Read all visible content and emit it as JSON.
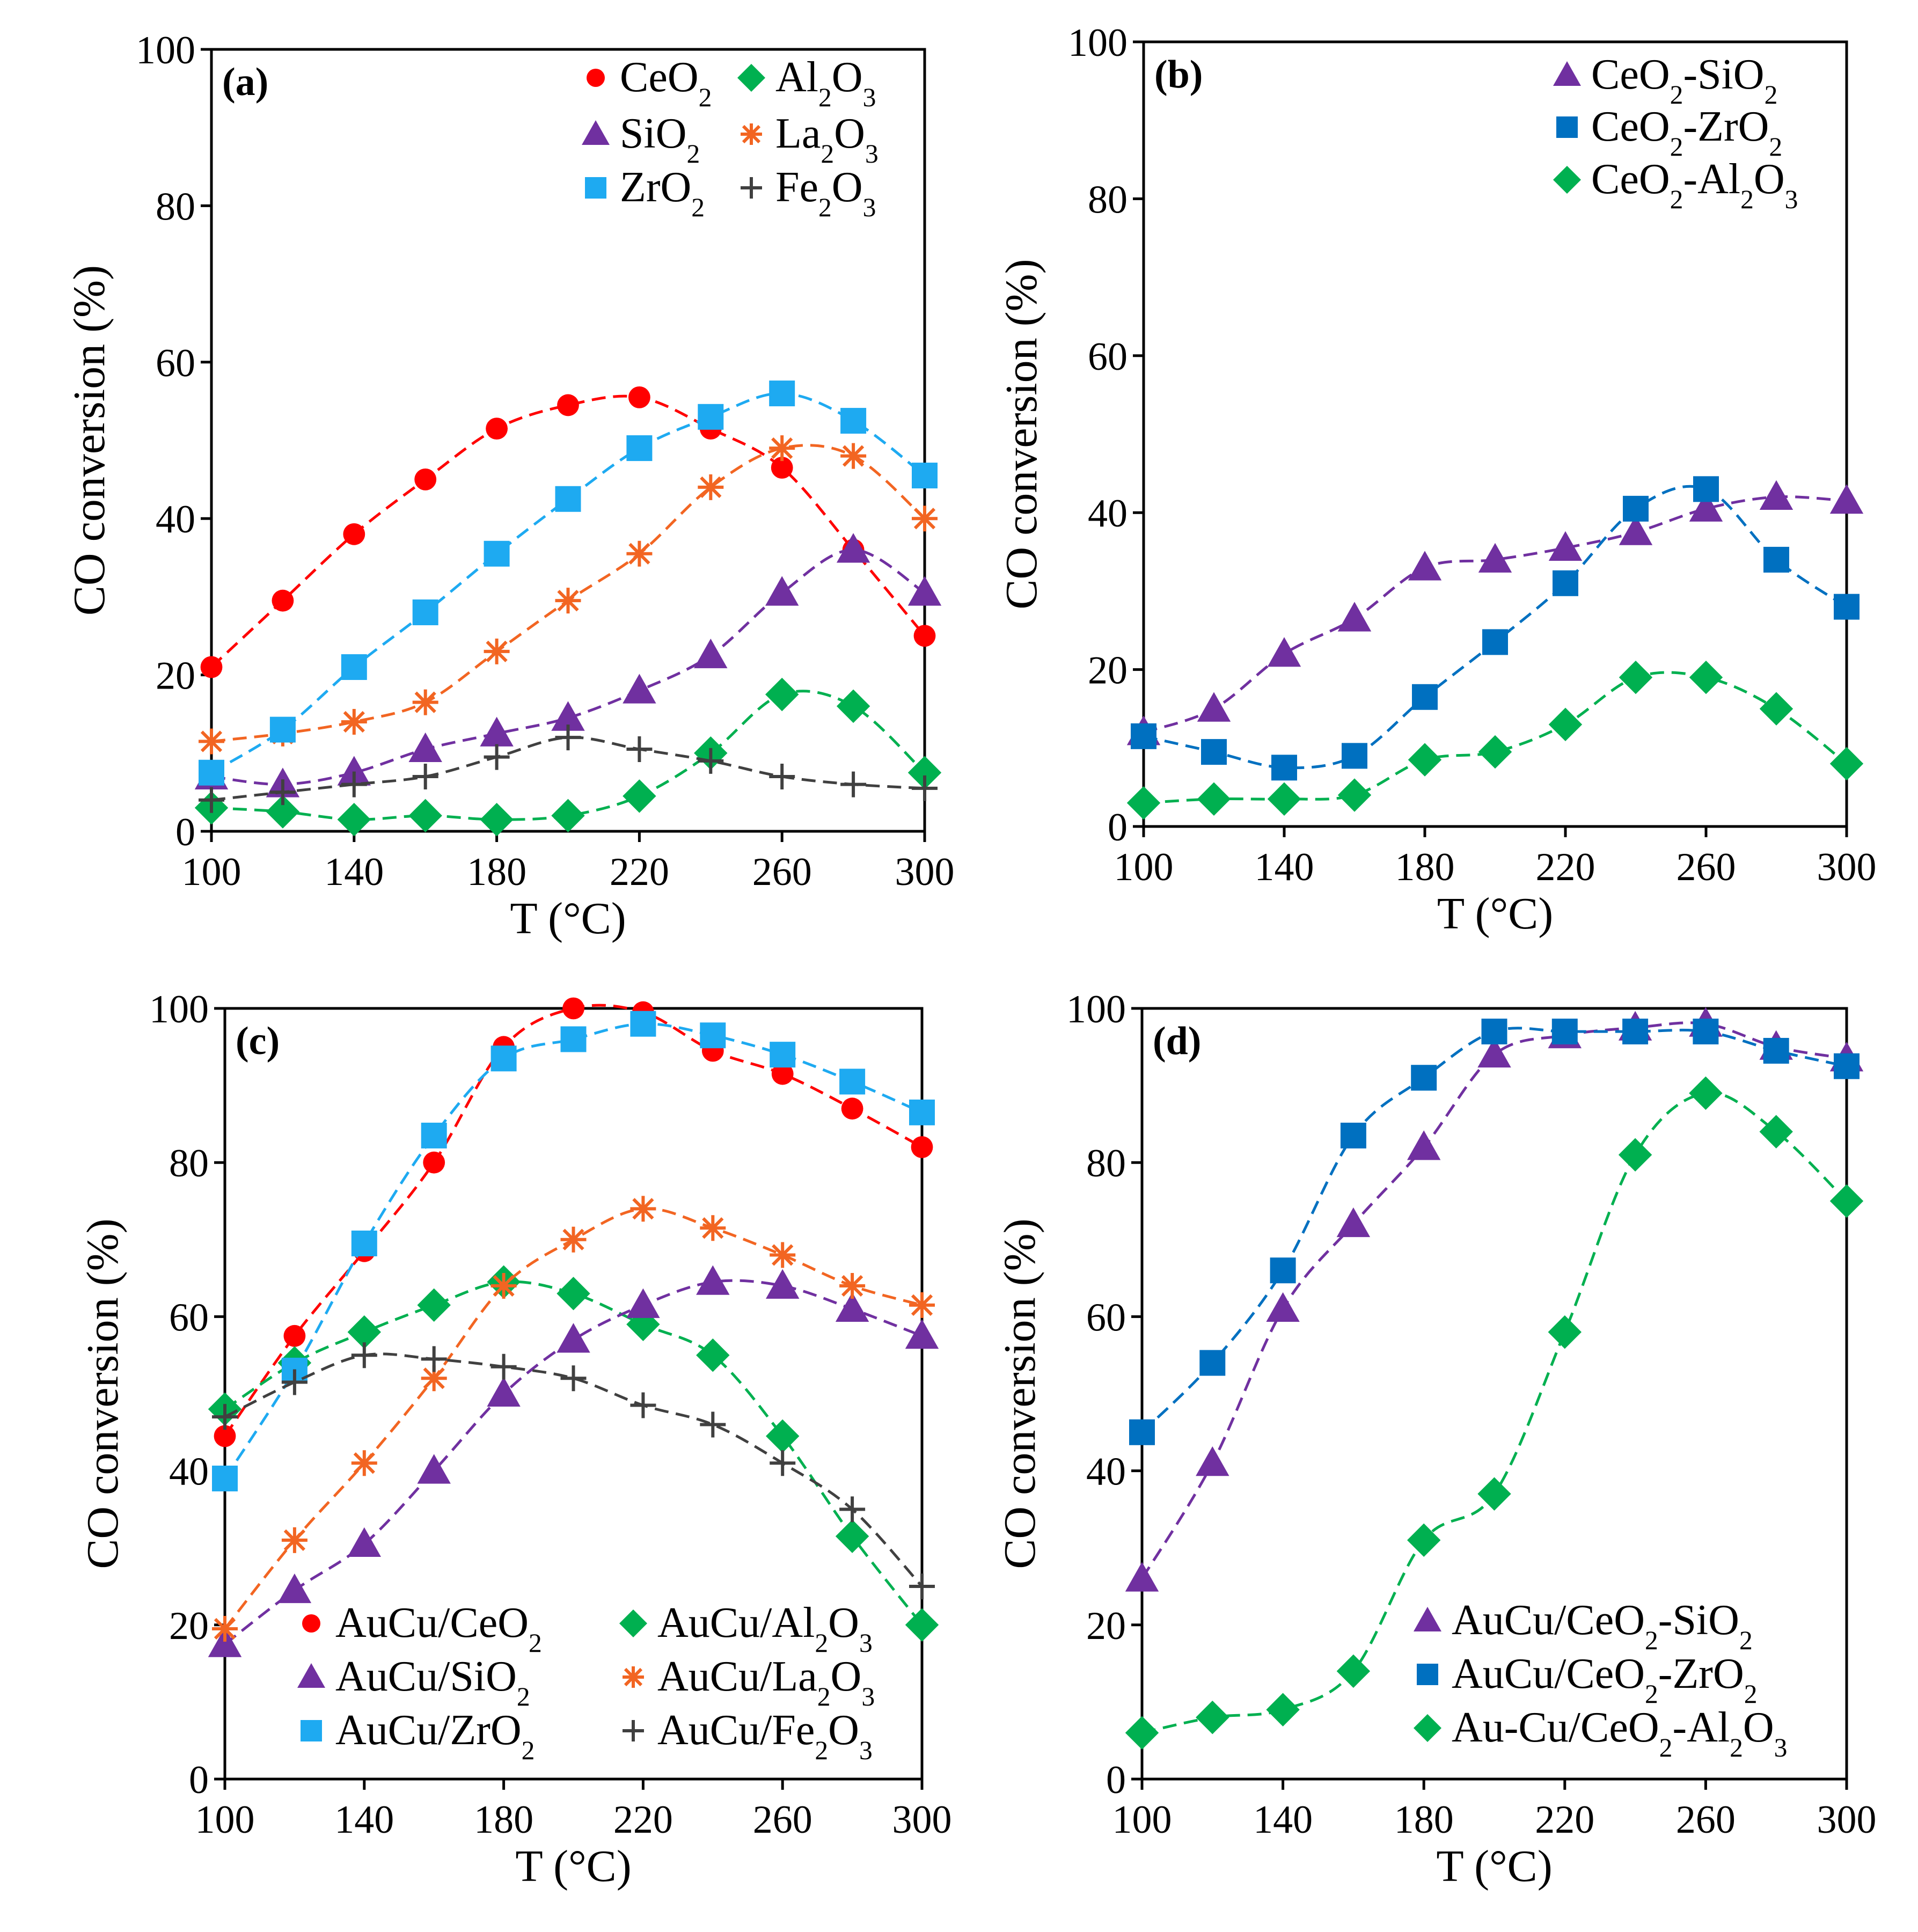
{
  "chart_data": [
    {
      "type": "line",
      "panel_label": "(a)",
      "xlabel": "T (°C)",
      "ylabel": "CO conversion (%)",
      "xlim": [
        100,
        300
      ],
      "ylim": [
        0,
        100
      ],
      "xticks": [
        100,
        140,
        180,
        220,
        260,
        300
      ],
      "yticks": [
        0,
        20,
        40,
        60,
        80,
        100
      ],
      "legend": "top-right",
      "grid": false,
      "x": [
        100,
        120,
        140,
        160,
        180,
        200,
        220,
        240,
        260,
        280,
        300
      ],
      "series": [
        {
          "name": "CeO2",
          "marker": "circle",
          "color": "#ff0000",
          "values": [
            21,
            29.5,
            38,
            45,
            51.5,
            54.5,
            55.5,
            51.5,
            46.5,
            36,
            25
          ]
        },
        {
          "name": "Al2O3",
          "marker": "diamond",
          "color": "#00b050",
          "values": [
            3,
            2.5,
            1.5,
            2,
            1.5,
            2,
            4.5,
            10,
            17.5,
            16,
            7.5
          ]
        },
        {
          "name": "SiO2",
          "marker": "triangle",
          "color": "#7030a0",
          "values": [
            7,
            6,
            7.5,
            10.5,
            12.5,
            14.5,
            18,
            22.5,
            30.5,
            36,
            30.5
          ]
        },
        {
          "name": "La2O3",
          "marker": "star",
          "color": "#f26522",
          "values": [
            11.5,
            12.5,
            14,
            16.5,
            23,
            29.5,
            35.5,
            44,
            49,
            48,
            40
          ]
        },
        {
          "name": "ZrO2",
          "marker": "square",
          "color": "#1eaaf1",
          "values": [
            7.5,
            13,
            21,
            28,
            35.5,
            42.5,
            49,
            53,
            56,
            52.5,
            45.5
          ]
        },
        {
          "name": "Fe2O3",
          "marker": "plus",
          "color": "#404040",
          "values": [
            4,
            5,
            6,
            7,
            9.5,
            12,
            10.5,
            9,
            7,
            6,
            5.5
          ]
        }
      ]
    },
    {
      "type": "line",
      "panel_label": "(b)",
      "xlabel": "T (°C)",
      "ylabel": "CO conversion (%)",
      "xlim": [
        100,
        300
      ],
      "ylim": [
        0,
        100
      ],
      "xticks": [
        100,
        140,
        180,
        220,
        260,
        300
      ],
      "yticks": [
        0,
        20,
        40,
        60,
        80,
        100
      ],
      "legend": "top-right",
      "grid": false,
      "x": [
        100,
        120,
        140,
        160,
        180,
        200,
        220,
        240,
        260,
        280,
        300
      ],
      "series": [
        {
          "name": "CeO2-SiO2",
          "marker": "triangle",
          "color": "#7030a0",
          "values": [
            12,
            15,
            22,
            26.5,
            33,
            34,
            35.5,
            37.5,
            40.5,
            42,
            41.5
          ]
        },
        {
          "name": "CeO2-ZrO2",
          "marker": "square",
          "color": "#0070c0",
          "values": [
            11.5,
            9.5,
            7.5,
            9,
            16.5,
            23.5,
            31,
            40.5,
            43,
            34,
            28
          ]
        },
        {
          "name": "CeO2-Al2O3",
          "marker": "diamond",
          "color": "#00b050",
          "values": [
            3,
            3.5,
            3.5,
            4,
            8.5,
            9.5,
            13,
            19,
            19,
            15,
            8
          ]
        }
      ]
    },
    {
      "type": "line",
      "panel_label": "(c)",
      "xlabel": "T (°C)",
      "ylabel": "CO conversion (%)",
      "xlim": [
        100,
        300
      ],
      "ylim": [
        0,
        100
      ],
      "xticks": [
        100,
        140,
        180,
        220,
        260,
        300
      ],
      "yticks": [
        0,
        20,
        40,
        60,
        80,
        100
      ],
      "legend": "bottom",
      "grid": false,
      "x": [
        100,
        120,
        140,
        160,
        180,
        200,
        220,
        240,
        260,
        280,
        300
      ],
      "series": [
        {
          "name": "AuCu/CeO2",
          "marker": "circle",
          "color": "#ff0000",
          "values": [
            44.5,
            57.5,
            68.5,
            80,
            95,
            100,
            99.5,
            94.5,
            91.5,
            87,
            82
          ]
        },
        {
          "name": "AuCu/Al2O3",
          "marker": "diamond",
          "color": "#00b050",
          "values": [
            48,
            54,
            58,
            61.5,
            64.5,
            63,
            59,
            55,
            44.5,
            31.5,
            20
          ]
        },
        {
          "name": "AuCu/SiO2",
          "marker": "triangle",
          "color": "#7030a0",
          "values": [
            17.5,
            24.5,
            30.5,
            40,
            50,
            57,
            61.5,
            64.5,
            64,
            61,
            57.5
          ]
        },
        {
          "name": "AuCu/La2O3",
          "marker": "star",
          "color": "#f26522",
          "values": [
            19.5,
            31,
            41,
            52,
            64,
            70,
            74,
            71.5,
            68,
            64,
            61.5
          ]
        },
        {
          "name": "AuCu/ZrO2",
          "marker": "square",
          "color": "#1eaaf1",
          "values": [
            39,
            53,
            69.5,
            83.5,
            93.5,
            96,
            98,
            96.5,
            94,
            90.5,
            86.5
          ]
        },
        {
          "name": "AuCu/Fe2O3",
          "marker": "plus",
          "color": "#404040",
          "values": [
            47,
            51.5,
            55,
            54.5,
            53.5,
            52,
            48.5,
            46,
            41,
            35,
            25
          ]
        }
      ]
    },
    {
      "type": "line",
      "panel_label": "(d)",
      "xlabel": "T (°C)",
      "ylabel": "CO conversion (%)",
      "xlim": [
        100,
        300
      ],
      "ylim": [
        0,
        100
      ],
      "xticks": [
        100,
        140,
        180,
        220,
        260,
        300
      ],
      "yticks": [
        0,
        20,
        40,
        60,
        80,
        100
      ],
      "legend": "bottom-right",
      "grid": false,
      "x": [
        100,
        120,
        140,
        160,
        180,
        200,
        220,
        240,
        260,
        280,
        300
      ],
      "series": [
        {
          "name": "AuCu/CeO2-SiO2",
          "marker": "triangle",
          "color": "#7030a0",
          "values": [
            26,
            41,
            61,
            72,
            82,
            94,
            96.5,
            97.5,
            98,
            95,
            93.5
          ]
        },
        {
          "name": "AuCu/CeO2-ZrO2",
          "marker": "square",
          "color": "#0070c0",
          "values": [
            45,
            54,
            66,
            83.5,
            91,
            97,
            97,
            97,
            97,
            94.5,
            92.5
          ]
        },
        {
          "name": "Au-Cu/CeO2-Al2O3",
          "marker": "diamond",
          "color": "#00b050",
          "values": [
            6,
            8,
            9,
            14,
            31,
            37,
            58,
            81,
            89,
            84,
            75
          ]
        }
      ]
    }
  ]
}
